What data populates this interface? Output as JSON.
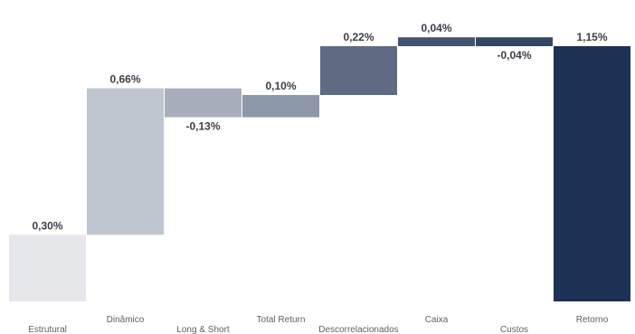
{
  "chart_data": {
    "type": "bar",
    "subtype": "waterfall",
    "categories": [
      "Estrutural",
      "Dinâmico",
      "Long & Short",
      "Total Return",
      "Descorrelacionados",
      "Caixa",
      "Custos",
      "Retorno"
    ],
    "values": [
      0.3,
      0.66,
      -0.13,
      0.1,
      0.22,
      0.04,
      -0.04,
      1.15
    ],
    "data_labels": [
      "0,30%",
      "0,66%",
      "-0,13%",
      "0,10%",
      "0,22%",
      "0,04%",
      "-0,04%",
      "1,15%"
    ],
    "total_index": 7,
    "colors": [
      "#e6e7ea",
      "#c0c6cf",
      "#a7afbc",
      "#8c97a8",
      "#5e6b82",
      "#44536f",
      "#354663",
      "#1c3153"
    ],
    "ylim": [
      0,
      1.2
    ],
    "grid": false,
    "legend": "none",
    "title": "",
    "xlabel": "",
    "ylabel": ""
  }
}
